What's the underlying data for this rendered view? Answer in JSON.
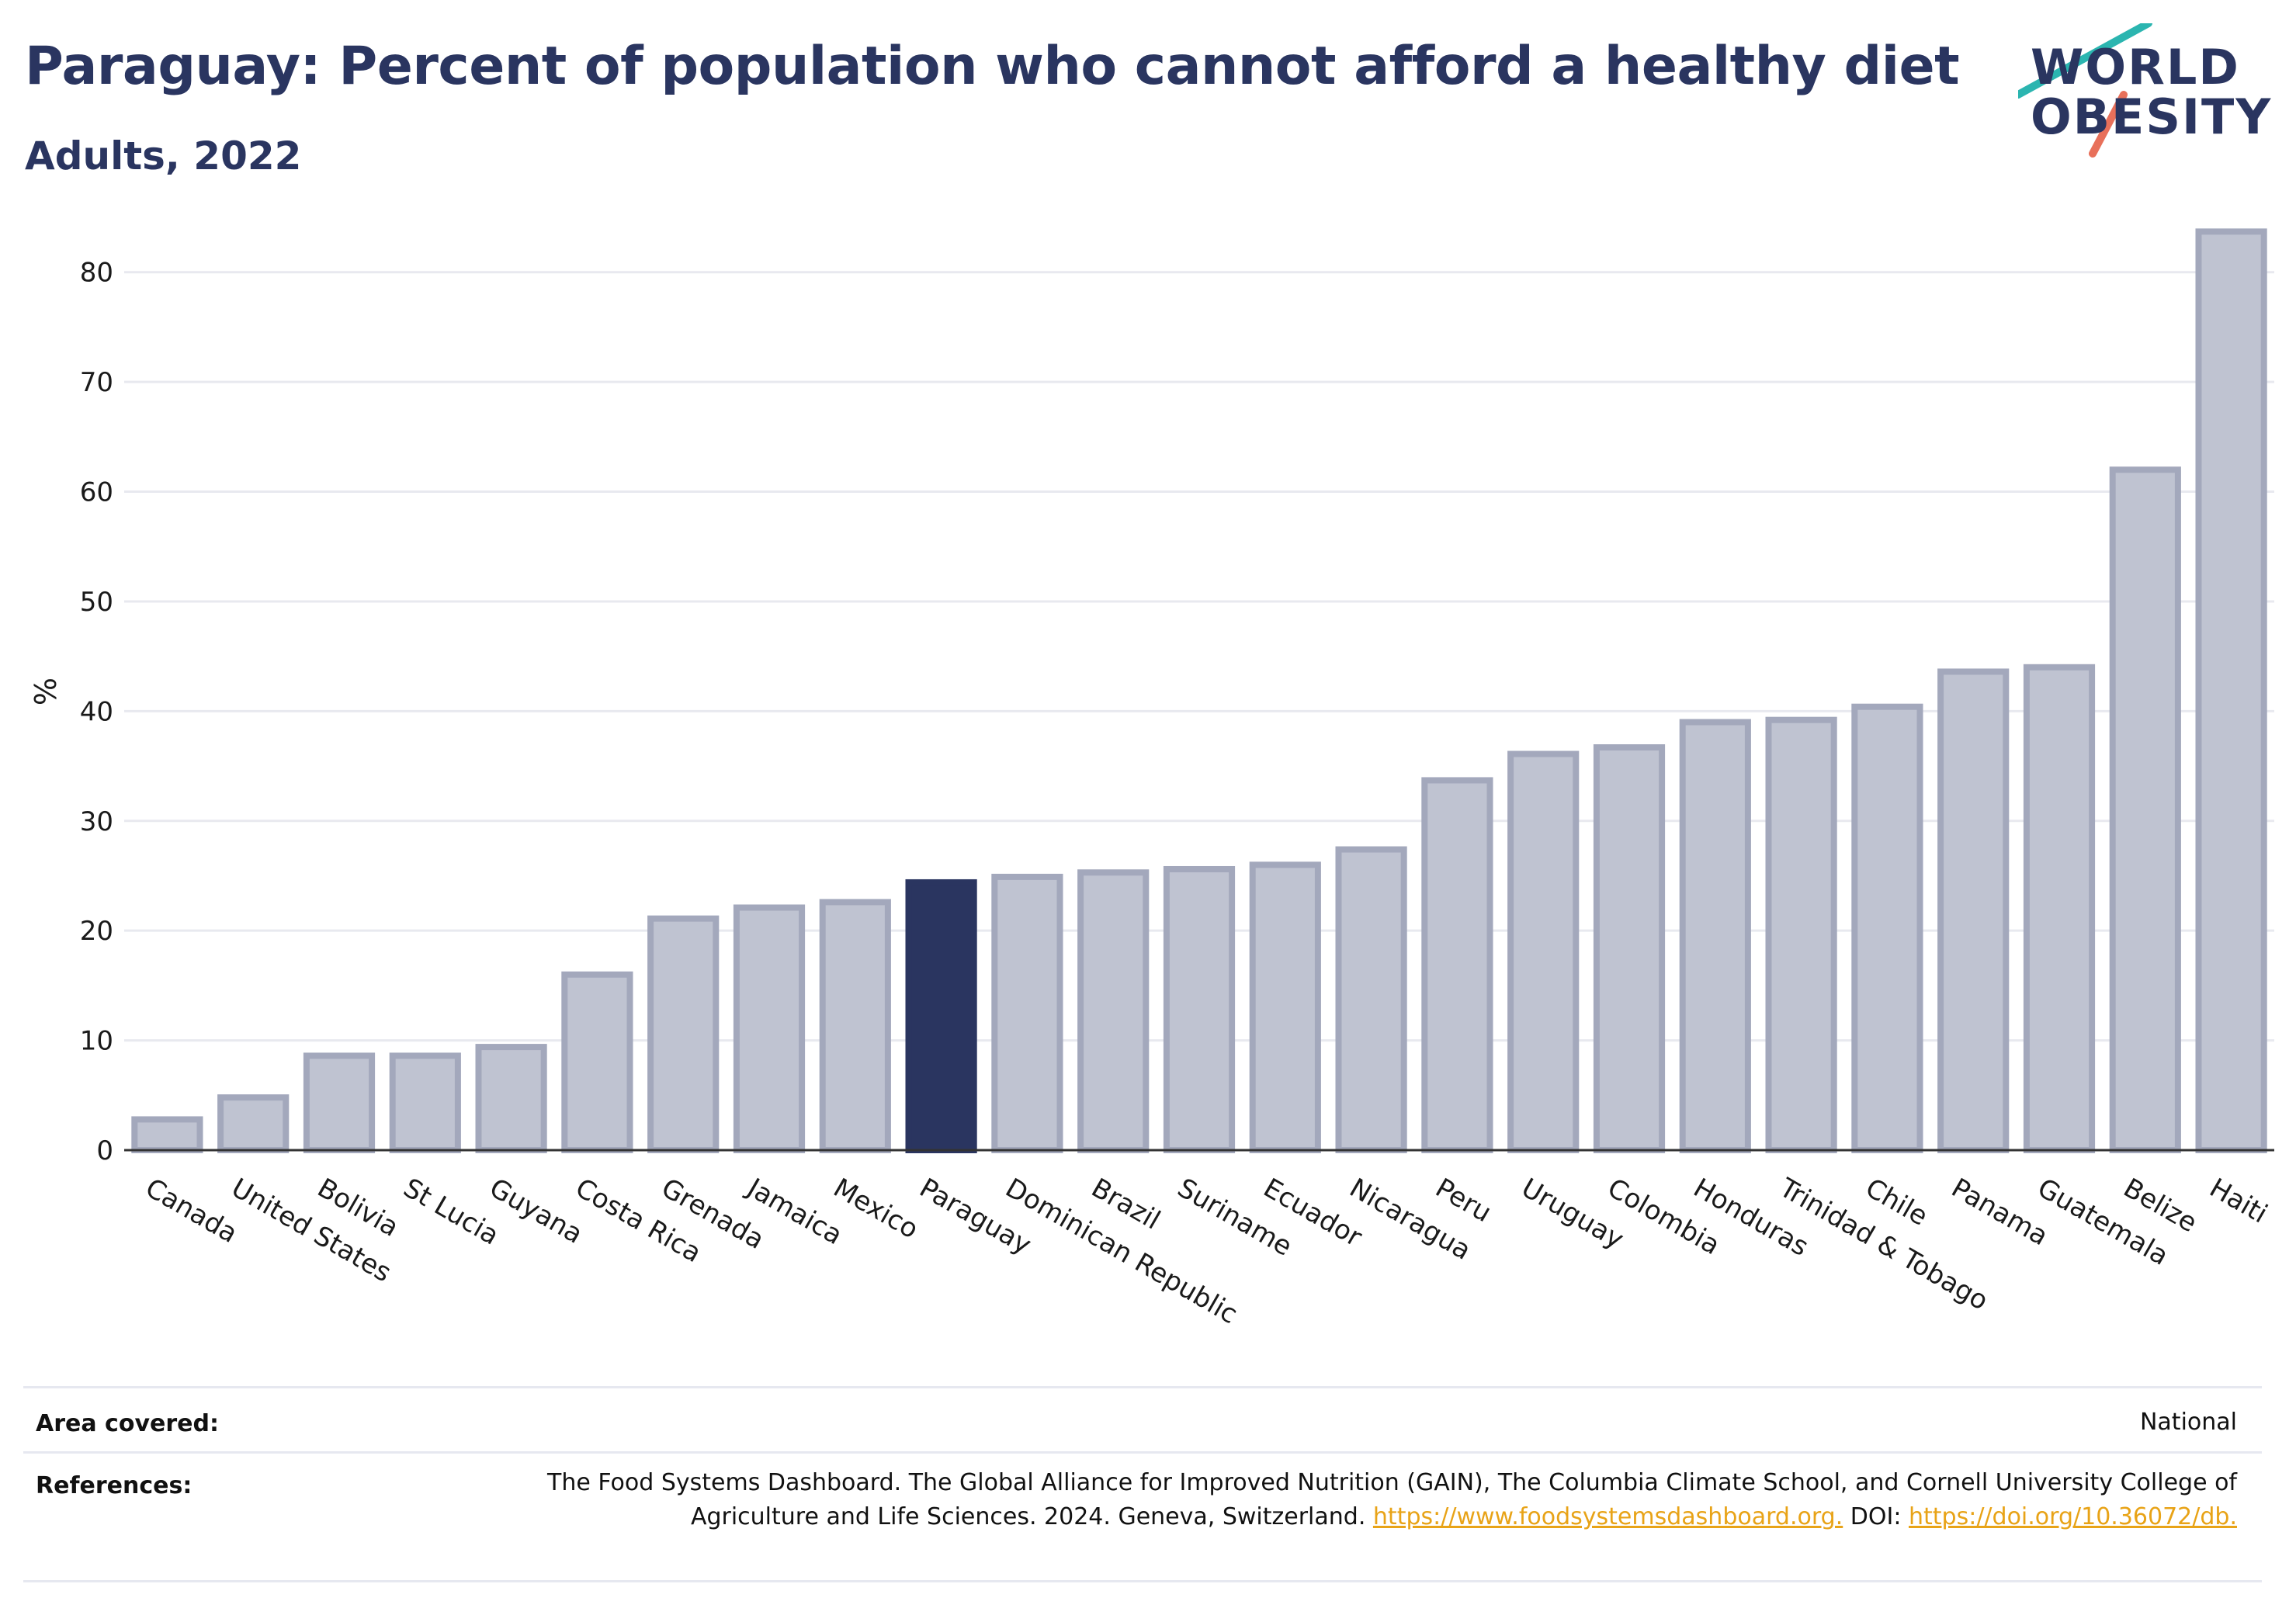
{
  "title": "Paraguay: Percent of population who cannot afford a healthy diet",
  "subtitle": "Adults, 2022",
  "logo": {
    "line1": "WORLD",
    "line2": "OBESITY",
    "accent_teal": "#2bb5b0",
    "accent_coral": "#e8705a"
  },
  "colors": {
    "bar": "#bfc3d1",
    "bar_stroke": "#a3a8bc",
    "highlight": "#2a3560",
    "grid": "#e8e9ef",
    "axis": "#333333"
  },
  "chart_data": {
    "type": "bar",
    "title": "Paraguay: Percent of population who cannot afford a healthy diet",
    "subtitle": "Adults, 2022",
    "xlabel": "",
    "ylabel": "%",
    "ylim": [
      0,
      85
    ],
    "yticks": [
      0,
      10,
      20,
      30,
      40,
      50,
      60,
      70,
      80
    ],
    "grid": true,
    "highlight": "Paraguay",
    "categories": [
      "Canada",
      "United States",
      "Bolivia",
      "St Lucia",
      "Guyana",
      "Costa Rica",
      "Grenada",
      "Jamaica",
      "Mexico",
      "Paraguay",
      "Dominican Republic",
      "Brazil",
      "Suriname",
      "Ecuador",
      "Nicaragua",
      "Peru",
      "Uruguay",
      "Colombia",
      "Honduras",
      "Trinidad & Tobago",
      "Chile",
      "Panama",
      "Guatemala",
      "Belize",
      "Haiti"
    ],
    "values": [
      2.8,
      4.8,
      8.6,
      8.6,
      9.4,
      16.0,
      21.1,
      22.1,
      22.6,
      24.4,
      24.9,
      25.3,
      25.6,
      26.0,
      27.4,
      33.7,
      36.1,
      36.7,
      39.0,
      39.2,
      40.4,
      43.6,
      44.0,
      62.0,
      83.7
    ]
  },
  "meta": {
    "area_label": "Area covered:",
    "area_value": "National",
    "references_label": "References:",
    "references_text": "The Food Systems Dashboard. The Global Alliance for Improved Nutrition (GAIN), The Columbia Climate School, and Cornell University College of Agriculture and Life Sciences. 2024. Geneva, Switzerland.",
    "references_link1": "https://www.foodsystemsdashboard.org.",
    "references_doi_label": "DOI:",
    "references_link2": "https://doi.org/10.36072/db."
  }
}
